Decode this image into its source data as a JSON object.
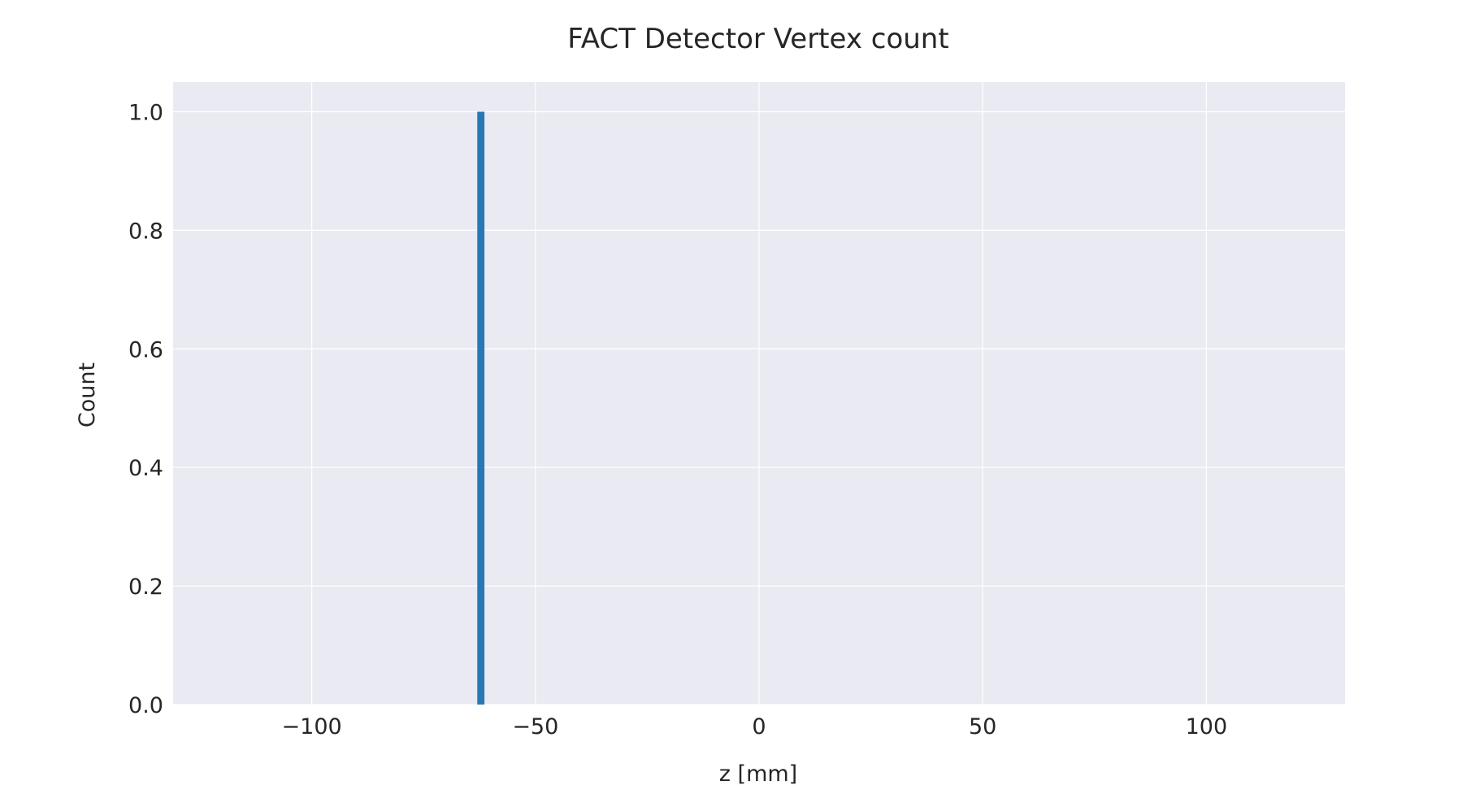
{
  "chart_data": {
    "type": "bar",
    "title": "FACT Detector Vertex count",
    "xlabel": "z [mm]",
    "ylabel": "Count",
    "xlim": [
      -131,
      131
    ],
    "ylim": [
      0,
      1.05
    ],
    "xticks": [
      -100,
      -50,
      0,
      50,
      100
    ],
    "xtick_labels": [
      "−100",
      "−50",
      "0",
      "50",
      "100"
    ],
    "yticks": [
      0.0,
      0.2,
      0.4,
      0.6,
      0.8,
      1.0
    ],
    "ytick_labels": [
      "0.0",
      "0.2",
      "0.4",
      "0.6",
      "0.8",
      "1.0"
    ],
    "grid": true,
    "bars": [
      {
        "x_start": -63,
        "x_end": -61.4,
        "value": 1.0
      }
    ],
    "colors": {
      "bar": "#2778b5",
      "plot_background": "#eaeaf2",
      "grid": "#ffffff",
      "text": "#262626"
    }
  }
}
